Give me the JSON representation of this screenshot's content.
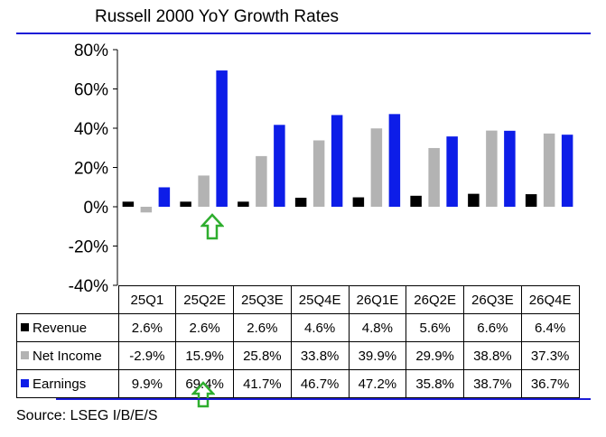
{
  "chart_data": {
    "type": "bar",
    "title": "Russell 2000 YoY Growth Rates",
    "categories": [
      "25Q1",
      "25Q2E",
      "25Q3E",
      "25Q4E",
      "26Q1E",
      "26Q2E",
      "26Q3E",
      "26Q4E"
    ],
    "series": [
      {
        "name": "Revenue",
        "color": "#000000",
        "values": [
          2.6,
          2.6,
          2.6,
          4.6,
          4.8,
          5.6,
          6.6,
          6.4
        ],
        "labels": [
          "2.6%",
          "2.6%",
          "2.6%",
          "4.6%",
          "4.8%",
          "5.6%",
          "6.6%",
          "6.4%"
        ]
      },
      {
        "name": "Net Income",
        "color": "#b3b3b3",
        "values": [
          -2.9,
          15.9,
          25.8,
          33.8,
          39.9,
          29.9,
          38.8,
          37.3
        ],
        "labels": [
          "-2.9%",
          "15.9%",
          "25.8%",
          "33.8%",
          "39.9%",
          "29.9%",
          "38.8%",
          "37.3%"
        ]
      },
      {
        "name": "Earnings",
        "color": "#0d1de8",
        "values": [
          9.9,
          69.4,
          41.7,
          46.7,
          47.2,
          35.8,
          38.7,
          36.7
        ],
        "labels": [
          "9.9%",
          "69.4%",
          "41.7%",
          "46.7%",
          "47.2%",
          "35.8%",
          "38.7%",
          "36.7%"
        ]
      }
    ],
    "ylim": [
      -40,
      80
    ],
    "yticks": [
      -40,
      -20,
      0,
      20,
      40,
      60,
      80
    ],
    "ytick_labels": [
      "-40%",
      "-20%",
      "0%",
      "20%",
      "40%",
      "60%",
      "80%"
    ],
    "grid": false,
    "legend": "data-table-below",
    "highlighted_category": "25Q2E",
    "highlight_color": "#2eae2e"
  },
  "source": "Source: LSEG I/B/E/S"
}
